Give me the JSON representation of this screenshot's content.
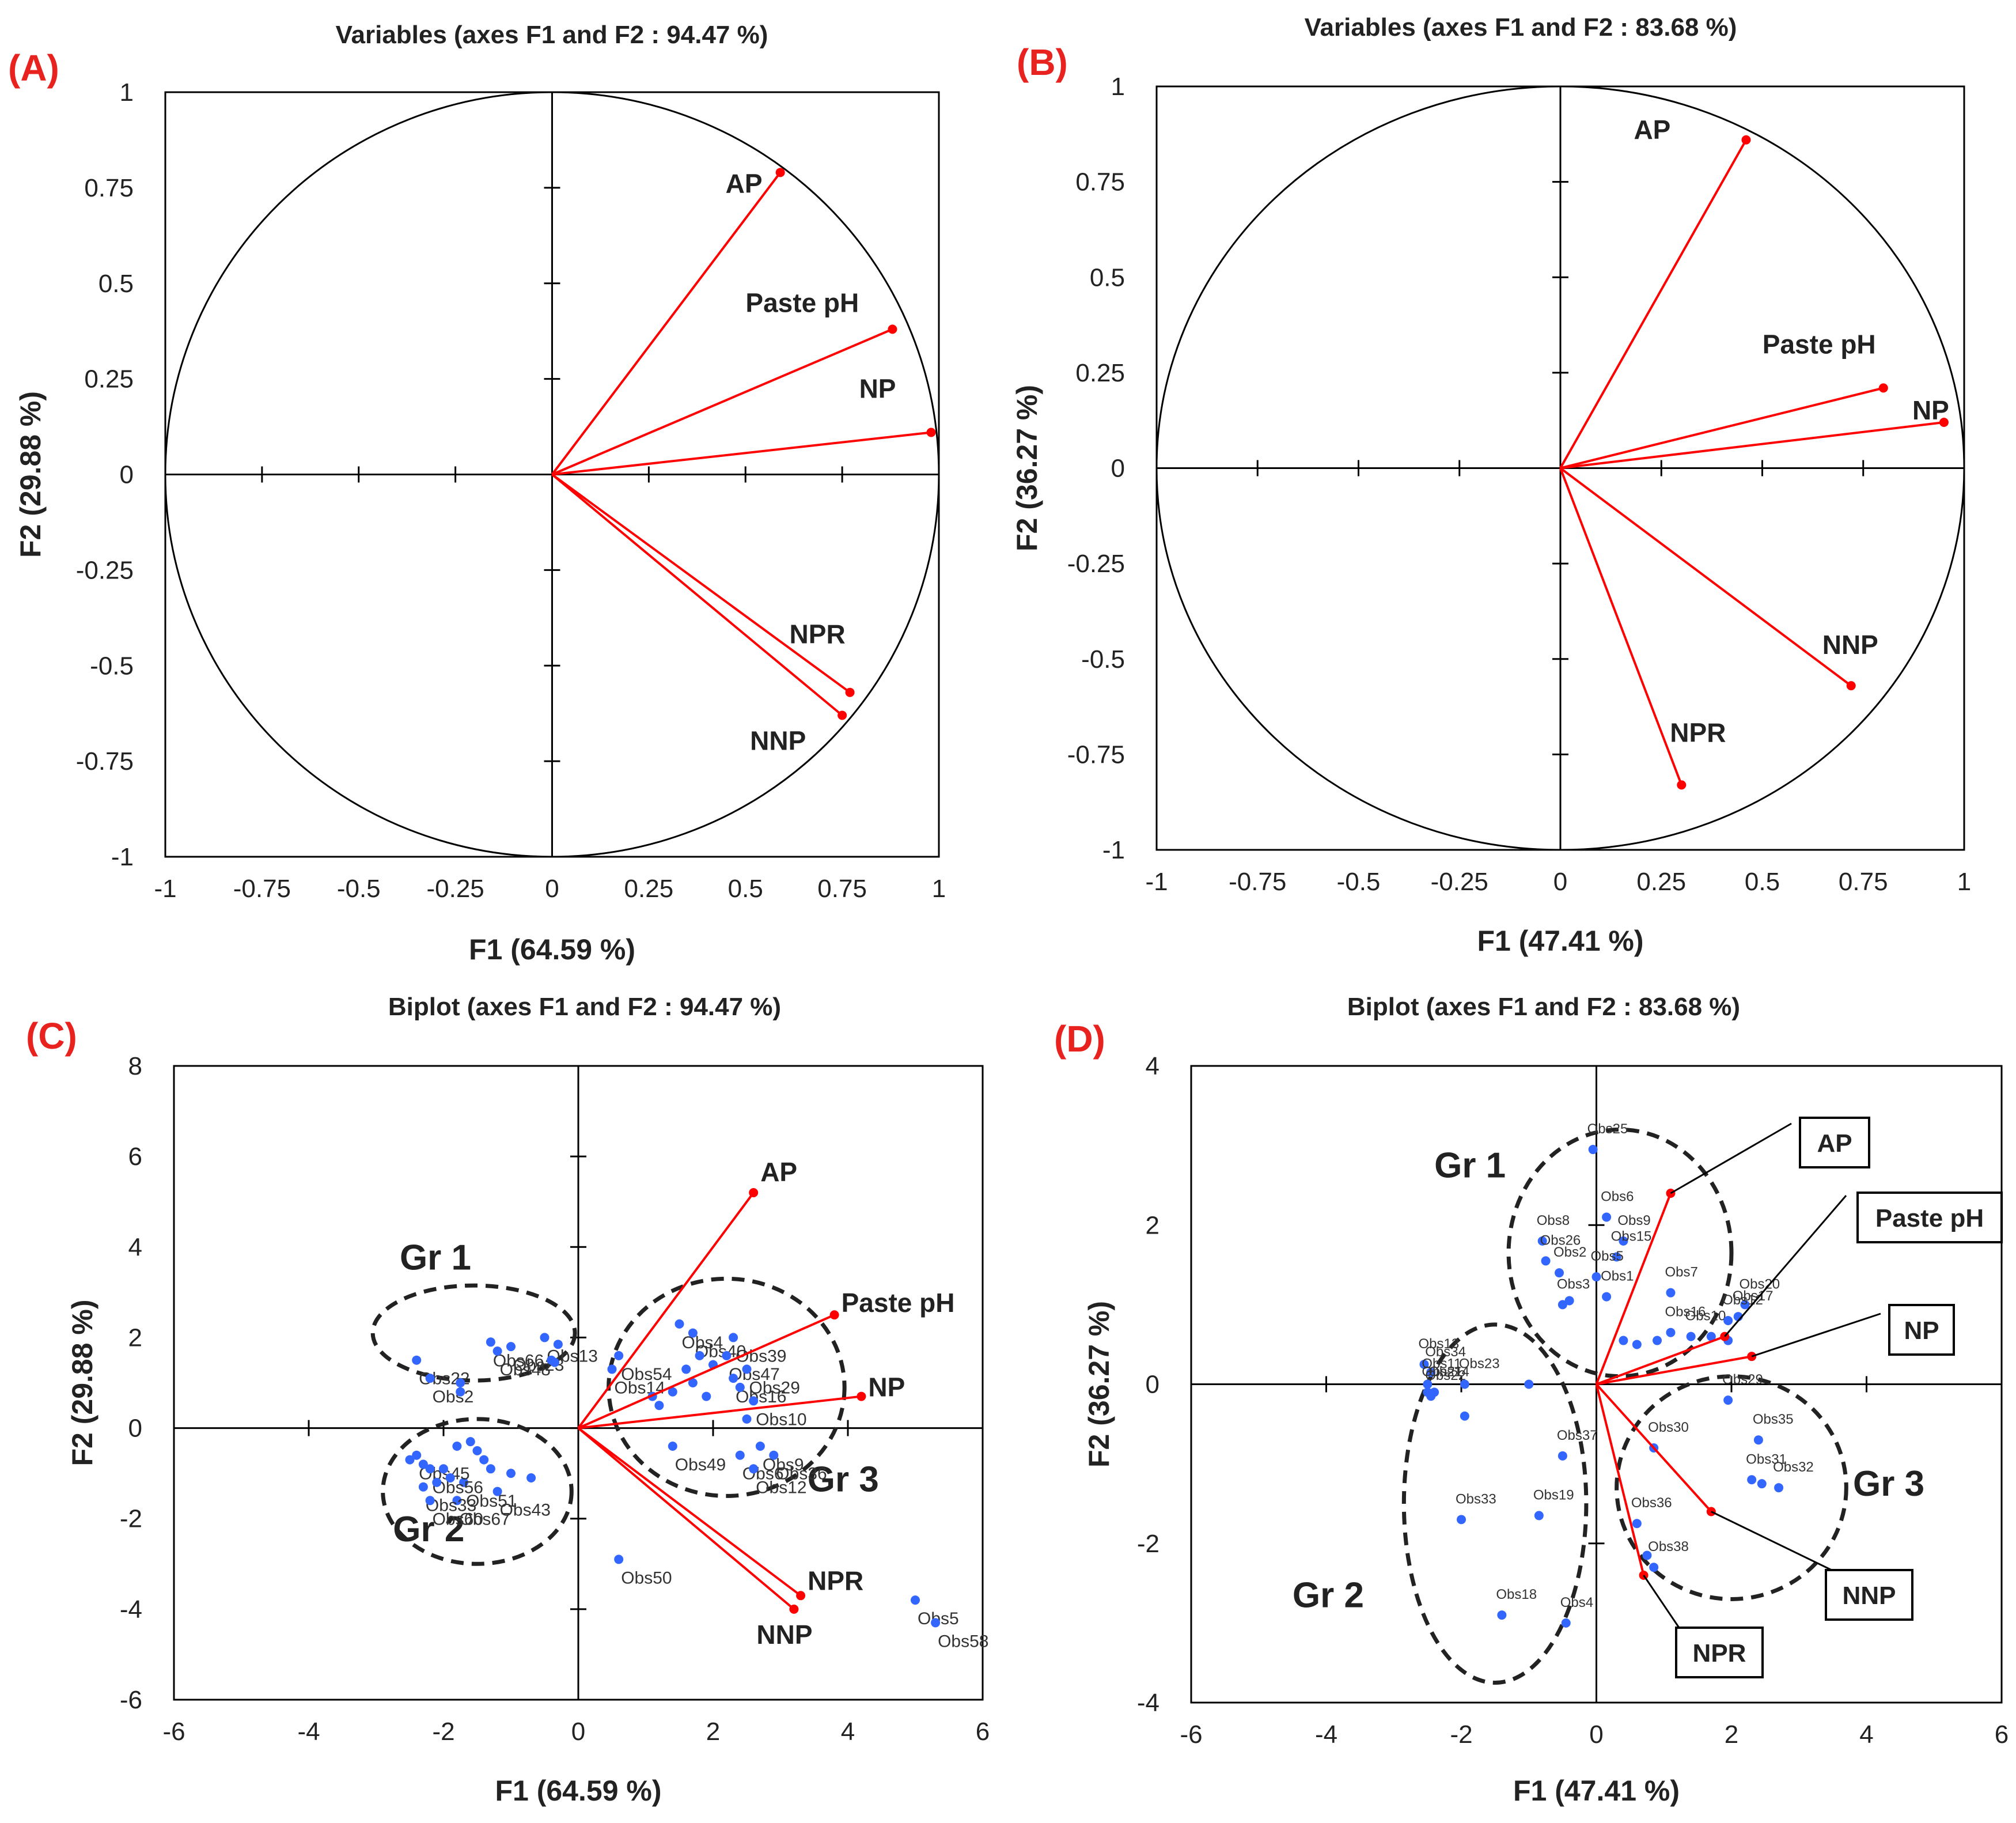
{
  "panels": [
    {
      "label": "(A)",
      "chart_data": {
        "type": "scatter",
        "kind": "correlation-circle",
        "title": "Variables (axes F1 and F2 : 94.47 %)",
        "xlabel": "F1 (64.59 %)",
        "ylabel": "F2 (29.88 %)",
        "xlim": [
          -1,
          1
        ],
        "ylim": [
          -1,
          1
        ],
        "xticks": [
          -1,
          -0.75,
          -0.5,
          -0.25,
          0,
          0.25,
          0.5,
          0.75,
          1
        ],
        "yticks": [
          -1,
          -0.75,
          -0.5,
          -0.25,
          0,
          0.25,
          0.5,
          0.75,
          1
        ],
        "xtick_labels": [
          "-1",
          "-0.75",
          "-0.5",
          "-0.25",
          "0",
          "0.25",
          "0.5",
          "0.75",
          "1"
        ],
        "ytick_labels": [
          "-1",
          "-0.75",
          "-0.5",
          "-0.25",
          "0",
          "0.25",
          "0.5",
          "0.75",
          "1"
        ],
        "vectors": [
          {
            "name": "AP",
            "x": 0.59,
            "y": 0.79
          },
          {
            "name": "Paste pH",
            "x": 0.88,
            "y": 0.38
          },
          {
            "name": "NP",
            "x": 0.98,
            "y": 0.11
          },
          {
            "name": "NPR",
            "x": 0.77,
            "y": -0.57
          },
          {
            "name": "NNP",
            "x": 0.75,
            "y": -0.63
          }
        ],
        "vector_color": "#ff0000"
      }
    },
    {
      "label": "(B)",
      "chart_data": {
        "type": "scatter",
        "kind": "correlation-circle",
        "title": "Variables (axes F1 and F2 : 83.68 %)",
        "xlabel": "F1 (47.41 %)",
        "ylabel": "F2 (36.27 %)",
        "xlim": [
          -1,
          1
        ],
        "ylim": [
          -1,
          1
        ],
        "xticks": [
          -1,
          -0.75,
          -0.5,
          -0.25,
          0,
          0.25,
          0.5,
          0.75,
          1
        ],
        "yticks": [
          -1,
          -0.75,
          -0.5,
          -0.25,
          0,
          0.25,
          0.5,
          0.75,
          1
        ],
        "xtick_labels": [
          "-1",
          "-0.75",
          "-0.5",
          "-0.25",
          "0",
          "0.25",
          "0.5",
          "0.75",
          "1"
        ],
        "ytick_labels": [
          "-1",
          "-0.75",
          "-0.5",
          "-0.25",
          "0",
          "0.25",
          "0.5",
          "0.75",
          "1"
        ],
        "vectors": [
          {
            "name": "AP",
            "x": 0.46,
            "y": 0.86
          },
          {
            "name": "Paste pH",
            "x": 0.8,
            "y": 0.21
          },
          {
            "name": "NP",
            "x": 0.95,
            "y": 0.12
          },
          {
            "name": "NNP",
            "x": 0.72,
            "y": -0.57
          },
          {
            "name": "NPR",
            "x": 0.3,
            "y": -0.83
          }
        ],
        "vector_color": "#ff0000"
      }
    },
    {
      "label": "(C)",
      "chart_data": {
        "type": "scatter",
        "kind": "biplot",
        "title": "Biplot (axes F1 and F2 : 94.47 %)",
        "xlabel": "F1 (64.59 %)",
        "ylabel": "F2 (29.88 %)",
        "xlim": [
          -6,
          6
        ],
        "ylim": [
          -6,
          8
        ],
        "xticks": [
          -6,
          -4,
          -2,
          0,
          2,
          4,
          6
        ],
        "yticks": [
          -6,
          -4,
          -2,
          0,
          2,
          4,
          6,
          8
        ],
        "xtick_labels": [
          "-6",
          "-4",
          "-2",
          "0",
          "2",
          "4",
          "6"
        ],
        "ytick_labels": [
          "-6",
          "-4",
          "-2",
          "0",
          "2",
          "4",
          "6",
          "8"
        ],
        "vectors": [
          {
            "name": "AP",
            "x": 2.6,
            "y": 5.2
          },
          {
            "name": "Paste pH",
            "x": 3.8,
            "y": 2.5
          },
          {
            "name": "NP",
            "x": 4.2,
            "y": 0.7
          },
          {
            "name": "NPR",
            "x": 3.3,
            "y": -3.7
          },
          {
            "name": "NNP",
            "x": 3.2,
            "y": -4.0
          }
        ],
        "vector_color": "#ff0000",
        "point_color": "#3366ff",
        "points": [
          {
            "label": "Obs66",
            "x": -1.3,
            "y": 1.9
          },
          {
            "label": "Obs23",
            "x": -1.0,
            "y": 1.8
          },
          {
            "label": "Obs13",
            "x": -0.5,
            "y": 2.0
          },
          {
            "label": "Obs48",
            "x": -1.2,
            "y": 1.7
          },
          {
            "label": "Obs22",
            "x": -2.4,
            "y": 1.5
          },
          {
            "label": "Obs2",
            "x": -2.2,
            "y": 1.1
          },
          {
            "label": "",
            "x": -0.4,
            "y": 1.5
          },
          {
            "label": "",
            "x": -0.35,
            "y": 1.45
          },
          {
            "label": "",
            "x": -0.3,
            "y": 1.85
          },
          {
            "label": "",
            "x": -1.75,
            "y": 1.0
          },
          {
            "label": "",
            "x": -1.75,
            "y": 0.8
          },
          {
            "label": "Obs54",
            "x": 0.6,
            "y": 1.6
          },
          {
            "label": "Obs14",
            "x": 0.5,
            "y": 1.3
          },
          {
            "label": "Obs4",
            "x": 1.5,
            "y": 2.3
          },
          {
            "label": "Obs39",
            "x": 2.3,
            "y": 2.0
          },
          {
            "label": "Obs40",
            "x": 1.7,
            "y": 2.1
          },
          {
            "label": "Obs47",
            "x": 2.2,
            "y": 1.6
          },
          {
            "label": "Obs29",
            "x": 2.5,
            "y": 1.3
          },
          {
            "label": "Obs16",
            "x": 2.3,
            "y": 1.1
          },
          {
            "label": "Obs10",
            "x": 2.6,
            "y": 0.6
          },
          {
            "label": "",
            "x": 1.1,
            "y": 0.7
          },
          {
            "label": "",
            "x": 1.2,
            "y": 0.5
          },
          {
            "label": "",
            "x": 1.4,
            "y": 0.8
          },
          {
            "label": "",
            "x": 1.6,
            "y": 1.3
          },
          {
            "label": "",
            "x": 1.7,
            "y": 1.0
          },
          {
            "label": "",
            "x": 1.9,
            "y": 0.7
          },
          {
            "label": "",
            "x": 2.0,
            "y": 1.4
          },
          {
            "label": "",
            "x": 1.8,
            "y": 1.6
          },
          {
            "label": "",
            "x": 2.4,
            "y": 0.9
          },
          {
            "label": "",
            "x": 2.5,
            "y": 0.2
          },
          {
            "label": "Obs9",
            "x": 2.7,
            "y": -0.4
          },
          {
            "label": "Obs49",
            "x": 1.4,
            "y": -0.4
          },
          {
            "label": "Obs6",
            "x": 2.4,
            "y": -0.6
          },
          {
            "label": "Obs36",
            "x": 2.9,
            "y": -0.6
          },
          {
            "label": "Obs12",
            "x": 2.6,
            "y": -0.9
          },
          {
            "label": "Obs50",
            "x": 0.6,
            "y": -2.9
          },
          {
            "label": "Obs5",
            "x": 5.0,
            "y": -3.8
          },
          {
            "label": "Obs58",
            "x": 5.3,
            "y": -4.3
          },
          {
            "label": "Obs51",
            "x": -1.7,
            "y": -1.2
          },
          {
            "label": "Obs43",
            "x": -1.2,
            "y": -1.4
          },
          {
            "label": "Obs67",
            "x": -1.8,
            "y": -1.6
          },
          {
            "label": "Obs33",
            "x": -2.3,
            "y": -1.3
          },
          {
            "label": "Obs60",
            "x": -2.2,
            "y": -1.6
          },
          {
            "label": "Obs45",
            "x": -2.4,
            "y": -0.6
          },
          {
            "label": "Obs56",
            "x": -2.2,
            "y": -0.9
          },
          {
            "label": "",
            "x": -2.5,
            "y": -0.7
          },
          {
            "label": "",
            "x": -2.3,
            "y": -0.8
          },
          {
            "label": "",
            "x": -2.0,
            "y": -0.9
          },
          {
            "label": "",
            "x": -1.8,
            "y": -0.4
          },
          {
            "label": "",
            "x": -1.6,
            "y": -0.3
          },
          {
            "label": "",
            "x": -1.5,
            "y": -0.5
          },
          {
            "label": "",
            "x": -1.4,
            "y": -0.7
          },
          {
            "label": "",
            "x": -1.3,
            "y": -0.9
          },
          {
            "label": "",
            "x": -1.0,
            "y": -1.0
          },
          {
            "label": "",
            "x": -0.7,
            "y": -1.1
          },
          {
            "label": "",
            "x": -1.9,
            "y": -1.1
          },
          {
            "label": "",
            "x": -2.1,
            "y": -1.2
          }
        ],
        "groups": [
          {
            "name": "Gr 1",
            "cx": -1.55,
            "cy": 2.1,
            "rx": 1.5,
            "ry": 1.05
          },
          {
            "name": "Gr 2",
            "cx": -1.5,
            "cy": -1.4,
            "rx": 1.4,
            "ry": 1.6
          },
          {
            "name": "Gr 3",
            "cx": 2.2,
            "cy": 0.9,
            "rx": 1.75,
            "ry": 2.4
          }
        ]
      }
    },
    {
      "label": "(D)",
      "chart_data": {
        "type": "scatter",
        "kind": "biplot",
        "title": "Biplot (axes F1 and F2 : 83.68 %)",
        "xlabel": "F1 (47.41 %)",
        "ylabel": "F2 (36.27 %)",
        "xlim": [
          -6,
          6
        ],
        "ylim": [
          -4,
          4
        ],
        "xticks": [
          -6,
          -4,
          -2,
          0,
          2,
          4,
          6
        ],
        "yticks": [
          -4,
          -2,
          0,
          2,
          4
        ],
        "xtick_labels": [
          "-6",
          "-4",
          "-2",
          "0",
          "2",
          "4",
          "6"
        ],
        "ytick_labels": [
          "-4",
          "-2",
          "0",
          "2",
          "4"
        ],
        "vectors": [
          {
            "name": "AP",
            "x": 1.1,
            "y": 2.4
          },
          {
            "name": "Paste pH",
            "x": 1.9,
            "y": 0.6
          },
          {
            "name": "NP",
            "x": 2.3,
            "y": 0.35
          },
          {
            "name": "NNP",
            "x": 1.7,
            "y": -1.6
          },
          {
            "name": "NPR",
            "x": 0.7,
            "y": -2.4
          }
        ],
        "vector_color": "#ff0000",
        "point_color": "#3366ff",
        "callouts": [
          {
            "name": "AP"
          },
          {
            "name": "Paste pH"
          },
          {
            "name": "NP"
          },
          {
            "name": "NNP"
          },
          {
            "name": "NPR"
          }
        ],
        "points": [
          {
            "label": "Obs25",
            "x": -0.05,
            "y": 2.95
          },
          {
            "label": "Obs6",
            "x": 0.15,
            "y": 2.1
          },
          {
            "label": "Obs8",
            "x": -0.8,
            "y": 1.8
          },
          {
            "label": "Obs9",
            "x": 0.4,
            "y": 1.8
          },
          {
            "label": "Obs26",
            "x": -0.75,
            "y": 1.55
          },
          {
            "label": "Obs15",
            "x": 0.3,
            "y": 1.6
          },
          {
            "label": "Obs5",
            "x": 0.0,
            "y": 1.35
          },
          {
            "label": "Obs2",
            "x": -0.55,
            "y": 1.4
          },
          {
            "label": "Obs3",
            "x": -0.5,
            "y": 1.0
          },
          {
            "label": "Obs1",
            "x": 0.15,
            "y": 1.1
          },
          {
            "label": "Obs7",
            "x": 1.1,
            "y": 1.15
          },
          {
            "label": "Obs20",
            "x": 2.2,
            "y": 1.0
          },
          {
            "label": "Obs10",
            "x": 1.4,
            "y": 0.6
          },
          {
            "label": "Obs16",
            "x": 1.1,
            "y": 0.65
          },
          {
            "label": "Obs12",
            "x": 1.95,
            "y": 0.8
          },
          {
            "label": "Obs17",
            "x": 2.1,
            "y": 0.85
          },
          {
            "label": "",
            "x": 0.4,
            "y": 0.55
          },
          {
            "label": "",
            "x": 0.6,
            "y": 0.5
          },
          {
            "label": "",
            "x": 0.9,
            "y": 0.55
          },
          {
            "label": "",
            "x": 1.7,
            "y": 0.6
          },
          {
            "label": "",
            "x": 1.95,
            "y": 0.55
          },
          {
            "label": "",
            "x": -0.4,
            "y": 1.05
          },
          {
            "label": "Obs13",
            "x": -2.55,
            "y": 0.25
          },
          {
            "label": "Obs34",
            "x": -2.45,
            "y": 0.15
          },
          {
            "label": "Obs11",
            "x": -2.5,
            "y": 0.0
          },
          {
            "label": "Obs21",
            "x": -2.5,
            "y": -0.1
          },
          {
            "label": "Obs22",
            "x": -2.45,
            "y": -0.15
          },
          {
            "label": "Obs23",
            "x": -1.95,
            "y": 0.0
          },
          {
            "label": "Obs14",
            "x": -2.4,
            "y": -0.1
          },
          {
            "label": "",
            "x": -1.0,
            "y": 0.0
          },
          {
            "label": "",
            "x": -1.95,
            "y": -0.4
          },
          {
            "label": "Obs37",
            "x": -0.5,
            "y": -0.9
          },
          {
            "label": "Obs33",
            "x": -2.0,
            "y": -1.7
          },
          {
            "label": "Obs19",
            "x": -0.85,
            "y": -1.65
          },
          {
            "label": "Obs18",
            "x": -1.4,
            "y": -2.9
          },
          {
            "label": "Obs4",
            "x": -0.45,
            "y": -3.0
          },
          {
            "label": "Obs29",
            "x": 1.95,
            "y": -0.2
          },
          {
            "label": "Obs35",
            "x": 2.4,
            "y": -0.7
          },
          {
            "label": "Obs30",
            "x": 0.85,
            "y": -0.8
          },
          {
            "label": "Obs31",
            "x": 2.3,
            "y": -1.2
          },
          {
            "label": "Obs32",
            "x": 2.7,
            "y": -1.3
          },
          {
            "label": "Obs36",
            "x": 0.6,
            "y": -1.75
          },
          {
            "label": "Obs38",
            "x": 0.85,
            "y": -2.3
          },
          {
            "label": "",
            "x": 2.45,
            "y": -1.25
          },
          {
            "label": "",
            "x": 0.75,
            "y": -2.15
          }
        ],
        "groups": [
          {
            "name": "Gr 1",
            "cx": 0.35,
            "cy": 1.65,
            "rx": 1.65,
            "ry": 1.55
          },
          {
            "name": "Gr 2",
            "cx": -1.5,
            "cy": -1.5,
            "rx": 1.35,
            "ry": 2.25
          },
          {
            "name": "Gr 3",
            "cx": 2.0,
            "cy": -1.3,
            "rx": 1.7,
            "ry": 1.4
          }
        ]
      }
    }
  ]
}
